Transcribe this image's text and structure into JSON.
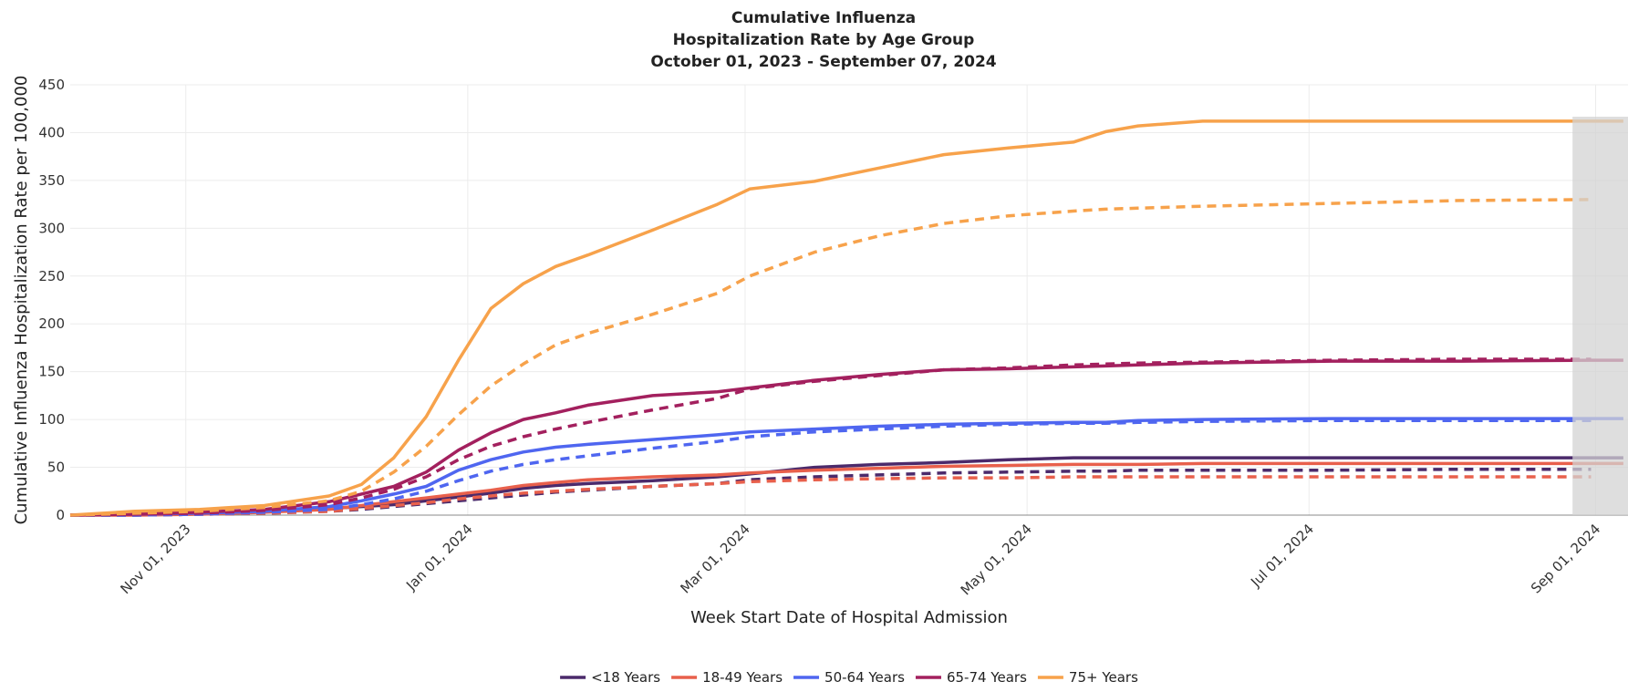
{
  "chart_data": {
    "type": "line",
    "title": [
      "Cumulative Influenza",
      "Hospitalization Rate by Age Group",
      "October 01, 2023 - September 07, 2024"
    ],
    "x_label": "Week Start Date of Hospital Admission",
    "y_label": "Cumulative Influenza Hospitalization Rate per 100,000",
    "x": [
      "2023-10-07",
      "2023-10-21",
      "2023-11-04",
      "2023-11-18",
      "2023-12-02",
      "2023-12-09",
      "2023-12-16",
      "2023-12-23",
      "2023-12-30",
      "2024-01-06",
      "2024-01-13",
      "2024-01-20",
      "2024-01-27",
      "2024-02-10",
      "2024-02-24",
      "2024-03-02",
      "2024-03-16",
      "2024-03-30",
      "2024-04-13",
      "2024-04-27",
      "2024-05-11",
      "2024-05-18",
      "2024-05-25",
      "2024-06-08",
      "2024-07-06",
      "2024-08-03",
      "2024-08-31",
      "2024-09-07"
    ],
    "xlim": [
      "2023-10-07",
      "2024-09-08"
    ],
    "xticks": [
      {
        "value": "2023-11-01",
        "label": "Nov 01, 2023"
      },
      {
        "value": "2024-01-01",
        "label": "Jan 01, 2024"
      },
      {
        "value": "2024-03-01",
        "label": "Mar 01, 2024"
      },
      {
        "value": "2024-05-01",
        "label": "May 01, 2024"
      },
      {
        "value": "2024-07-01",
        "label": "Jul 01, 2024"
      },
      {
        "value": "2024-09-01",
        "label": "Sep 01, 2024"
      }
    ],
    "ylim": [
      0,
      450
    ],
    "yticks": [
      0,
      50,
      100,
      150,
      200,
      250,
      300,
      350,
      400,
      450
    ],
    "grid": true,
    "shaded_from": "2024-08-27",
    "legend": "bottom",
    "series": [
      {
        "name": "<18 Years",
        "color": "#4b2a6b",
        "values": [
          0,
          1,
          2,
          4,
          7,
          9,
          11,
          15,
          19,
          23,
          28,
          31,
          33,
          36,
          40,
          43,
          50,
          53,
          55,
          58,
          60,
          60,
          60,
          60,
          60,
          60,
          60,
          60
        ]
      },
      {
        "name": "18-49 Years",
        "color": "#e8604c",
        "values": [
          0,
          0,
          1,
          3,
          6,
          10,
          14,
          18,
          22,
          26,
          31,
          34,
          37,
          40,
          42,
          44,
          47,
          49,
          51,
          52,
          53,
          53,
          53,
          54,
          54,
          54,
          54,
          54
        ]
      },
      {
        "name": "50-64 Years",
        "color": "#4f66f0",
        "values": [
          0,
          1,
          2,
          4,
          9,
          15,
          22,
          30,
          47,
          58,
          66,
          71,
          74,
          79,
          84,
          87,
          90,
          93,
          95,
          96,
          97,
          97,
          99,
          100,
          101,
          101,
          101,
          101
        ]
      },
      {
        "name": "65-74 Years",
        "color": "#a3205e",
        "values": [
          0,
          1,
          3,
          6,
          14,
          22,
          30,
          45,
          68,
          86,
          100,
          107,
          115,
          125,
          129,
          133,
          141,
          147,
          152,
          153,
          155,
          156,
          157,
          159,
          161,
          161,
          162,
          162
        ]
      },
      {
        "name": "75+ Years",
        "color": "#f7a24b",
        "values": [
          0,
          4,
          6,
          10,
          20,
          32,
          60,
          103,
          162,
          216,
          242,
          260,
          272,
          298,
          325,
          341,
          349,
          363,
          377,
          384,
          390,
          401,
          407,
          412,
          412,
          412,
          412,
          412
        ]
      },
      {
        "color": "#4b2a6b",
        "dash": true,
        "values": [
          0,
          0,
          1,
          2,
          4,
          6,
          9,
          12,
          15,
          18,
          21,
          24,
          26,
          30,
          33,
          37,
          40,
          42,
          44,
          45,
          46,
          46,
          47,
          47,
          47,
          48,
          48,
          null
        ]
      },
      {
        "color": "#e8604c",
        "dash": true,
        "values": [
          0,
          0,
          1,
          2,
          4,
          7,
          10,
          13,
          17,
          20,
          23,
          25,
          27,
          30,
          33,
          35,
          37,
          38,
          39,
          39,
          40,
          40,
          40,
          40,
          40,
          40,
          40,
          null
        ]
      },
      {
        "color": "#4f66f0",
        "dash": true,
        "values": [
          0,
          0,
          1,
          3,
          6,
          11,
          17,
          25,
          36,
          46,
          53,
          58,
          62,
          70,
          77,
          82,
          87,
          90,
          93,
          95,
          96,
          96,
          97,
          98,
          99,
          99,
          99,
          null
        ]
      },
      {
        "color": "#a3205e",
        "dash": true,
        "values": [
          0,
          1,
          2,
          5,
          11,
          18,
          27,
          40,
          58,
          72,
          82,
          90,
          97,
          110,
          122,
          132,
          140,
          146,
          152,
          154,
          157,
          158,
          159,
          160,
          162,
          163,
          163,
          null
        ]
      },
      {
        "color": "#f7a24b",
        "dash": true,
        "values": [
          0,
          2,
          4,
          8,
          15,
          25,
          45,
          72,
          105,
          135,
          158,
          178,
          190,
          210,
          232,
          250,
          275,
          292,
          305,
          313,
          318,
          320,
          321,
          323,
          326,
          329,
          330,
          null
        ]
      }
    ]
  }
}
